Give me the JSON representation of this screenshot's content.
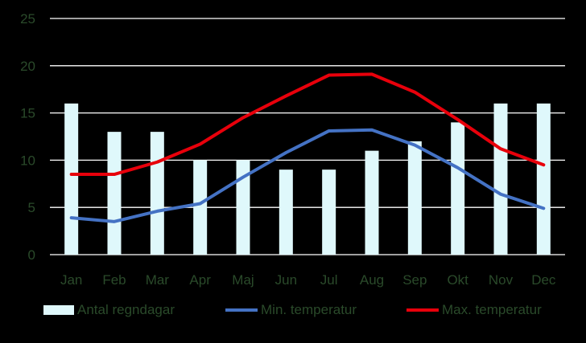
{
  "chart_data": {
    "type": "bar+line",
    "categories": [
      "Jan",
      "Feb",
      "Mar",
      "Apr",
      "Maj",
      "Jun",
      "Jul",
      "Aug",
      "Sep",
      "Okt",
      "Nov",
      "Dec"
    ],
    "ylim": [
      0,
      25
    ],
    "yticks": [
      0,
      5,
      10,
      15,
      20,
      25
    ],
    "grid": true,
    "legend_position": "bottom",
    "series": [
      {
        "name": "Antal regndagar",
        "type": "bar",
        "color": "#dff8fb",
        "values": [
          16,
          13,
          13,
          10,
          10,
          9,
          9,
          11,
          12,
          14,
          16,
          16
        ]
      },
      {
        "name": "Min. temperatur",
        "type": "line",
        "color": "#4472c4",
        "values": [
          3.9,
          3.5,
          4.6,
          5.4,
          8.2,
          10.8,
          13.1,
          13.2,
          11.6,
          9.2,
          6.4,
          4.9
        ]
      },
      {
        "name": "Max. temperatur",
        "type": "line",
        "color": "#e8000b",
        "values": [
          8.5,
          8.5,
          9.8,
          11.7,
          14.5,
          16.8,
          19.0,
          19.1,
          17.2,
          14.3,
          11.2,
          9.5
        ]
      }
    ]
  }
}
